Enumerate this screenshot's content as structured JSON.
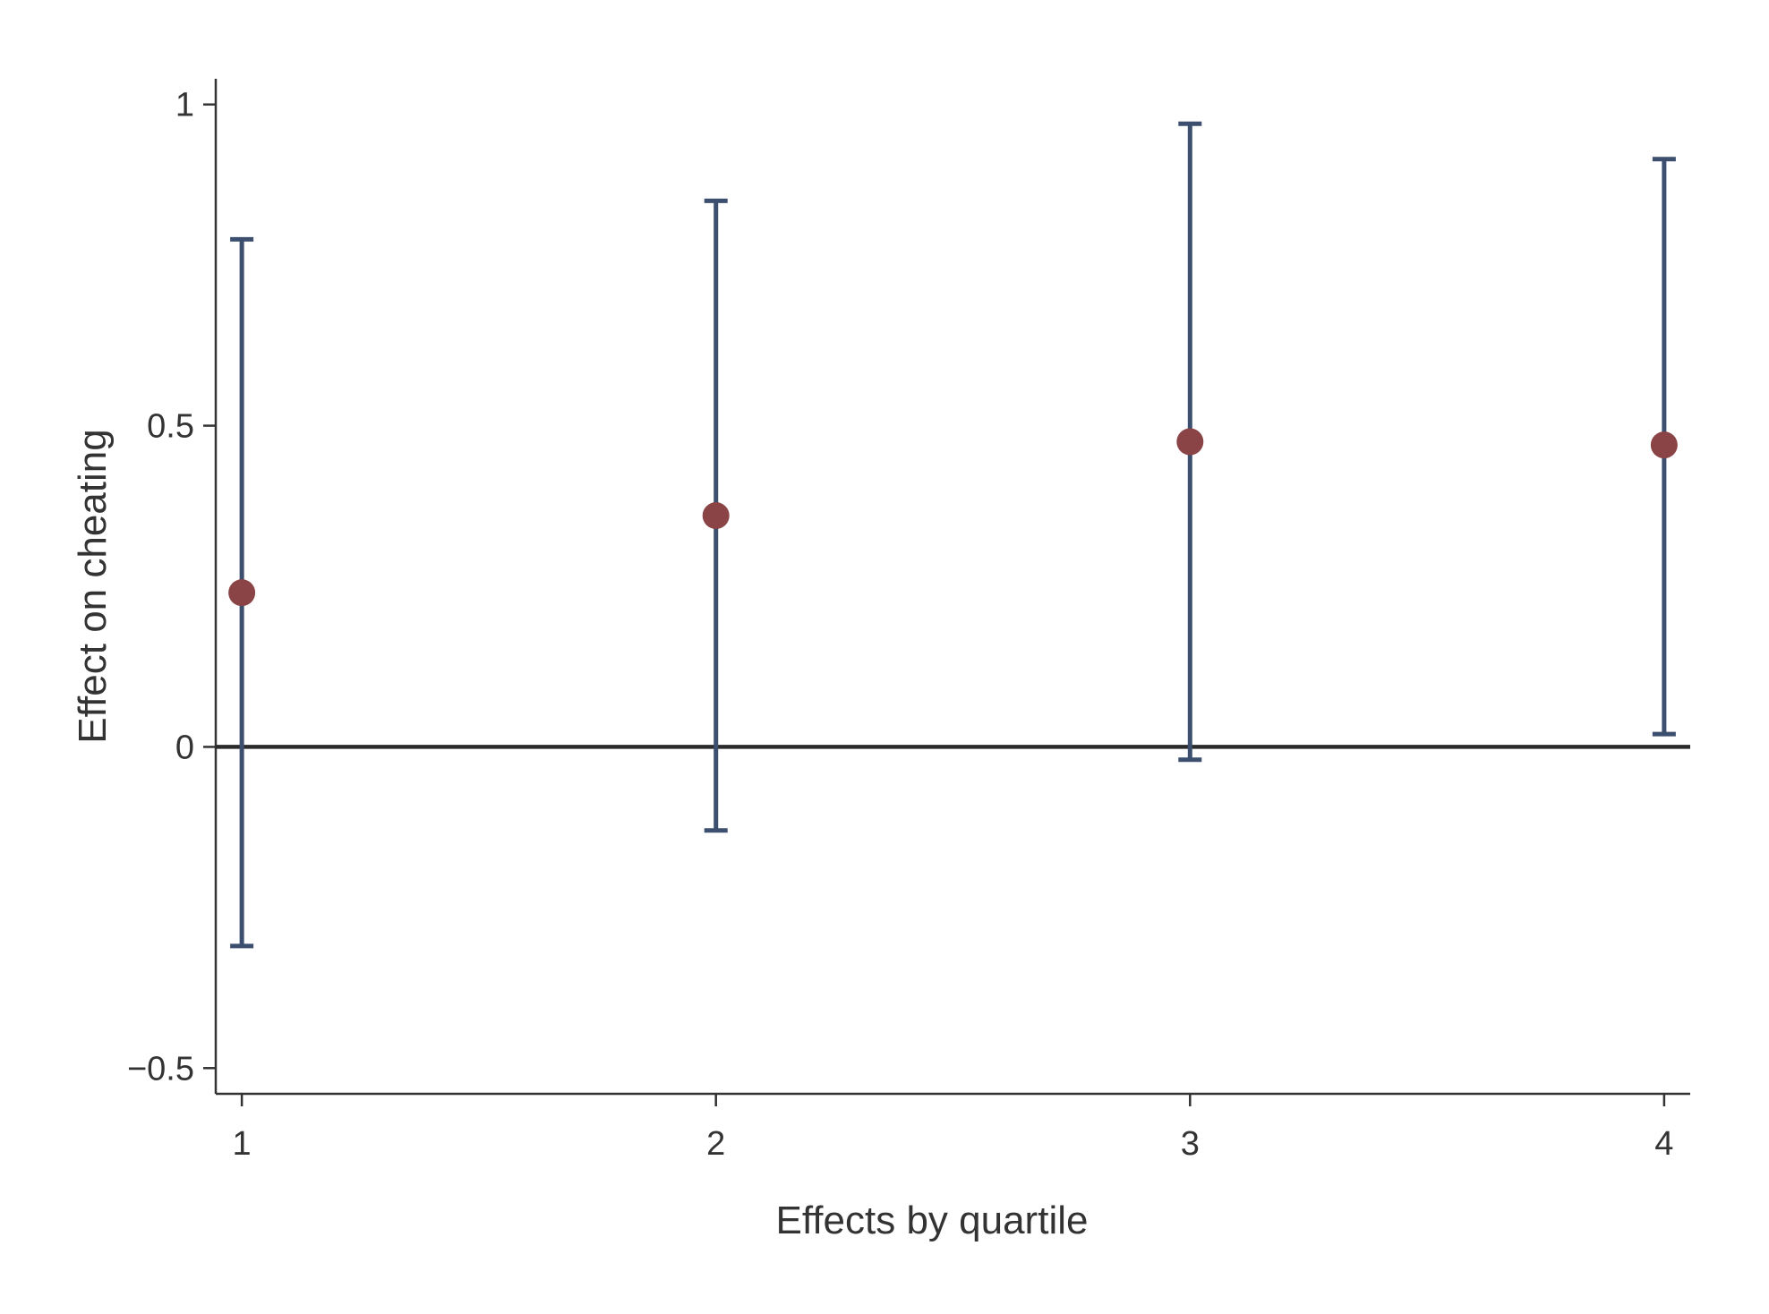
{
  "chart_data": {
    "type": "scatter",
    "title": "",
    "xlabel": "Effects by quartile",
    "ylabel": "Effect on cheating",
    "x_ticks": [
      1,
      2,
      3,
      4
    ],
    "y_ticks": [
      -0.5,
      0,
      0.5,
      1
    ],
    "y_tick_labels": [
      "−0.5",
      "0",
      "0.5",
      "1"
    ],
    "xlim": [
      0.945,
      4.055
    ],
    "ylim": [
      -0.54,
      1.04
    ],
    "reference_line_y": 0,
    "grid": false,
    "points": [
      {
        "x": 1,
        "estimate": 0.24,
        "ci_low": -0.31,
        "ci_high": 0.79
      },
      {
        "x": 2,
        "estimate": 0.36,
        "ci_low": -0.13,
        "ci_high": 0.85
      },
      {
        "x": 3,
        "estimate": 0.475,
        "ci_low": -0.02,
        "ci_high": 0.97
      },
      {
        "x": 4,
        "estimate": 0.47,
        "ci_low": 0.02,
        "ci_high": 0.915
      }
    ],
    "colors": {
      "marker": "#8b4446",
      "error_bar": "#3c4f6e",
      "axis": "#333333",
      "reference_line": "#2b2b2b"
    }
  }
}
